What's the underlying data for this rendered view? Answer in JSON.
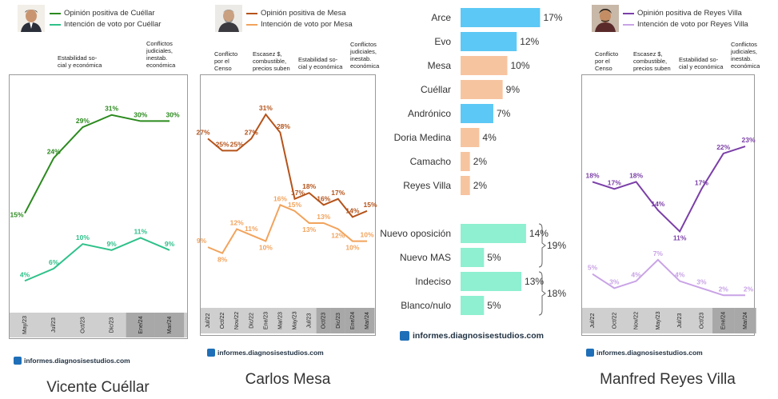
{
  "chart_data": [
    {
      "type": "line",
      "title": "Vicente Cuéllar",
      "legend": [
        "Opinión positiva de Cuéllar",
        "Intención de voto por Cuéllar"
      ],
      "annotations": [
        "Estabilidad so- cial y económica",
        "Conflictos judiciales, inestab. económica"
      ],
      "categories": [
        "May/23",
        "Jul/23",
        "Oct/23",
        "Dic/23",
        "Ene/24",
        "Mar/24"
      ],
      "series": [
        {
          "name": "Opinión positiva de Cuéllar",
          "color": "#2b8a1e",
          "values": [
            15,
            24,
            29,
            31,
            30,
            30
          ]
        },
        {
          "name": "Intención de voto por Cuéllar",
          "color": "#2ec18a",
          "values": [
            4,
            6,
            10,
            9,
            11,
            9
          ]
        }
      ],
      "labels": [
        [
          "15%",
          "24%",
          "29%",
          "31%",
          "30%",
          "30%"
        ],
        [
          "4%",
          "6%",
          "10%",
          "9%",
          "11%",
          "9%"
        ]
      ],
      "ylim": [
        0,
        35
      ],
      "brand": "informes.diagnosisestudios.com"
    },
    {
      "type": "line",
      "title": "Carlos Mesa",
      "legend": [
        "Opinión positiva de Mesa",
        "Intención de voto por Mesa"
      ],
      "annotations": [
        "Conflicto por el Censo",
        "Escasez $, combustible, precios suben",
        "Estabilidad so- cial y económica",
        "Conflictos judiciales, inestab. económica"
      ],
      "categories": [
        "Jul/22",
        "Oct/22",
        "Nov/22",
        "Dic/22",
        "Ene/23",
        "Mar/23",
        "May/23",
        "Jul/23",
        "Oct/23",
        "Dic/23",
        "Ene/24",
        "Mar/24"
      ],
      "series": [
        {
          "name": "Opinión positiva de Mesa",
          "color": "#b5531a",
          "values": [
            27,
            25,
            25,
            27,
            31,
            28,
            17,
            18,
            16,
            17,
            14,
            15
          ]
        },
        {
          "name": "Intención de voto por Mesa",
          "color": "#f2a35c",
          "values": [
            9,
            8,
            12,
            11,
            10,
            16,
            15,
            13,
            13,
            12,
            10,
            10
          ]
        }
      ],
      "labels": [
        [
          "27%",
          "25%",
          "25%",
          "27%",
          "31%",
          "28%",
          "17%",
          "18%",
          "16%",
          "17%",
          "14%",
          "15%"
        ],
        [
          "9%",
          "8%",
          "12%",
          "11%",
          "10%",
          "16%",
          "15%",
          "13%",
          "13%",
          "12%",
          "10%",
          "10%"
        ]
      ],
      "ylim": [
        0,
        35
      ],
      "brand": "informes.diagnosisestudios.com"
    },
    {
      "type": "bar",
      "orientation": "horizontal",
      "categories": [
        "Arce",
        "Evo",
        "Mesa",
        "Cuéllar",
        "Andrónico",
        "Doria Medina",
        "Camacho",
        "Reyes Villa",
        "Nuevo oposición",
        "Nuevo MAS",
        "Indeciso",
        "Blanco/nulo"
      ],
      "values": [
        17,
        12,
        10,
        9,
        7,
        4,
        2,
        2,
        14,
        5,
        13,
        5
      ],
      "value_labels": [
        "17%",
        "12%",
        "10%",
        "9%",
        "7%",
        "4%",
        "2%",
        "2%",
        "14%",
        "5%",
        "13%",
        "5%"
      ],
      "colors": [
        "#5cc8f5",
        "#5cc8f5",
        "#f7c4a0",
        "#f7c4a0",
        "#5cc8f5",
        "#f7c4a0",
        "#f7c4a0",
        "#f7c4a0",
        "#8ef0d0",
        "#8ef0d0",
        "#8ef0d0",
        "#8ef0d0"
      ],
      "group_totals": [
        {
          "label": "19%",
          "rows": [
            8,
            9
          ]
        },
        {
          "label": "18%",
          "rows": [
            10,
            11
          ]
        }
      ],
      "brand": "informes.diagnosisestudios.com"
    },
    {
      "type": "line",
      "title": "Manfred Reyes Villa",
      "legend": [
        "Opinión positiva de Reyes Villa",
        "Intención de voto por Reyes Villa"
      ],
      "annotations": [
        "Conflicto por el Censo",
        "Escasez $, combustible, precios suben",
        "Estabilidad so- cial y económica",
        "Conflictos judiciales, inestab. económica"
      ],
      "categories": [
        "Jul/22",
        "Oct/22",
        "Nov/22",
        "May/23",
        "Jul/23",
        "Oct/23",
        "Ene/24",
        "Mar/24"
      ],
      "series": [
        {
          "name": "Opinión positiva de Reyes Villa",
          "color": "#7b3fa8",
          "values": [
            18,
            17,
            18,
            14,
            11,
            17,
            22,
            23
          ]
        },
        {
          "name": "Intención de voto por Reyes Villa",
          "color": "#c9a3e6",
          "values": [
            5,
            3,
            4,
            7,
            4,
            3,
            2,
            2
          ]
        }
      ],
      "labels": [
        [
          "18%",
          "17%",
          "18%",
          "14%",
          "11%",
          "17%",
          "22%",
          "23%"
        ],
        [
          "5%",
          "3%",
          "4%",
          "7%",
          "4%",
          "3%",
          "2%",
          "2%"
        ]
      ],
      "ylim": [
        0,
        30
      ],
      "brand": "informes.diagnosisestudios.com"
    }
  ]
}
